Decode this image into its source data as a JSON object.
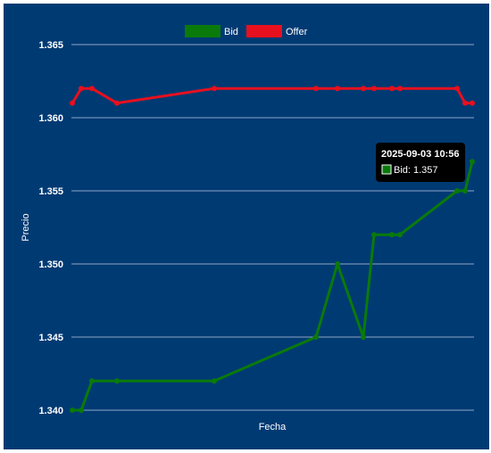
{
  "chart_data": {
    "type": "line",
    "xlabel": "Fecha",
    "ylabel": "Precio",
    "ylim": [
      1.34,
      1.365
    ],
    "yticks": [
      "1.340",
      "1.345",
      "1.350",
      "1.355",
      "1.360",
      "1.365"
    ],
    "grid": true,
    "legend_position": "top-center",
    "series": [
      {
        "name": "Bid",
        "color": "#0a7a0a",
        "values": [
          1.34,
          1.34,
          1.342,
          1.342,
          1.342,
          1.345,
          1.35,
          1.345,
          1.352,
          1.352,
          1.352,
          1.355,
          1.355,
          1.357
        ]
      },
      {
        "name": "Offer",
        "color": "#e8101e",
        "values": [
          1.361,
          1.362,
          1.362,
          1.361,
          1.362,
          1.362,
          1.362,
          1.362,
          1.362,
          1.362,
          1.362,
          1.362,
          1.361,
          1.361
        ]
      }
    ],
    "tooltip": {
      "title": "2025-09-03 10:56",
      "label": "Bid: 1.357"
    }
  },
  "colors": {
    "background": "#003a73",
    "grid": "#8ea6c4"
  }
}
